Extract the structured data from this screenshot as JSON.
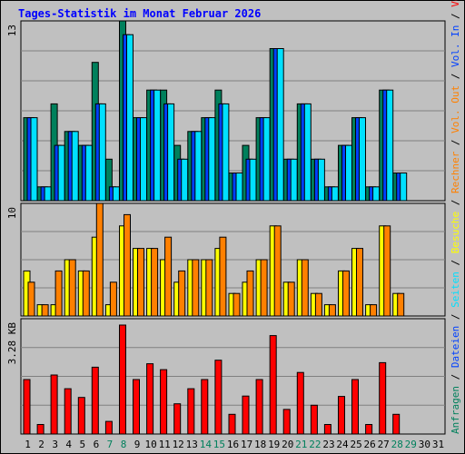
{
  "title": "Tages-Statistik im Monat Februar 2026",
  "colors": {
    "background": "#c0c0c0",
    "plot_bg": "#c0c0c0",
    "title": "#0000ff",
    "axis_label": "#000000",
    "gridline": "#808080",
    "anfragen": "#00805c",
    "dateien": "#0040ff",
    "seiten": "#00e0ff",
    "besuche": "#ffff00",
    "rechner": "#ff8000",
    "volumen": "#ff0000",
    "weekend_day": "#00805c",
    "weekday_day": "#000000"
  },
  "right_labels": {
    "top": [
      {
        "text": "Anfragen",
        "color": "#00805c"
      },
      {
        "text": " / ",
        "color": "#000000"
      },
      {
        "text": "Dateien",
        "color": "#0040ff"
      },
      {
        "text": " / ",
        "color": "#000000"
      },
      {
        "text": "Seiten",
        "color": "#00e0ff"
      },
      {
        "text": " / ",
        "color": "#000000"
      },
      {
        "text": "Besuche",
        "color": "#ffff00"
      },
      {
        "text": " / ",
        "color": "#000000"
      },
      {
        "text": "Rechner",
        "color": "#ff8000"
      },
      {
        "text": " / ",
        "color": "#000000"
      },
      {
        "text": "Vol. Out",
        "color": "#ff8000"
      },
      {
        "text": " / ",
        "color": "#000000"
      },
      {
        "text": "Vol. In",
        "color": "#0040ff"
      },
      {
        "text": " / ",
        "color": "#000000"
      },
      {
        "text": "Volumen",
        "color": "#ff0000"
      }
    ]
  },
  "chart_data": [
    {
      "type": "bar",
      "panel": "top",
      "ymax_label": "13",
      "ylim": [
        0,
        13
      ],
      "categories": [
        "1",
        "2",
        "3",
        "4",
        "5",
        "6",
        "7",
        "8",
        "9",
        "10",
        "11",
        "12",
        "13",
        "14",
        "15",
        "16",
        "17",
        "18",
        "19",
        "20",
        "21",
        "22",
        "23",
        "24",
        "25",
        "26",
        "27",
        "28",
        "29",
        "30",
        "31"
      ],
      "series": [
        {
          "name": "Anfragen",
          "color_key": "anfragen",
          "values": [
            6,
            1,
            7,
            5,
            4,
            10,
            3,
            13,
            6,
            8,
            8,
            4,
            5,
            6,
            8,
            2,
            4,
            6,
            11,
            3,
            7,
            3,
            1,
            4,
            6,
            1,
            8,
            2,
            0,
            0,
            0
          ]
        },
        {
          "name": "Dateien",
          "color_key": "dateien",
          "values": [
            6,
            1,
            4,
            5,
            4,
            7,
            1,
            12,
            6,
            8,
            7,
            3,
            5,
            6,
            7,
            2,
            3,
            6,
            11,
            3,
            7,
            3,
            1,
            4,
            6,
            1,
            8,
            2,
            0,
            0,
            0
          ]
        },
        {
          "name": "Seiten",
          "color_key": "seiten",
          "values": [
            6,
            1,
            4,
            5,
            4,
            7,
            1,
            12,
            6,
            8,
            7,
            3,
            5,
            6,
            7,
            2,
            3,
            6,
            11,
            3,
            7,
            3,
            1,
            4,
            6,
            1,
            8,
            2,
            0,
            0,
            0
          ]
        }
      ]
    },
    {
      "type": "bar",
      "panel": "middle",
      "ymax_label": "10",
      "ylim": [
        0,
        10
      ],
      "categories": [
        "1",
        "2",
        "3",
        "4",
        "5",
        "6",
        "7",
        "8",
        "9",
        "10",
        "11",
        "12",
        "13",
        "14",
        "15",
        "16",
        "17",
        "18",
        "19",
        "20",
        "21",
        "22",
        "23",
        "24",
        "25",
        "26",
        "27",
        "28",
        "29",
        "30",
        "31"
      ],
      "series": [
        {
          "name": "Besuche",
          "color_key": "besuche",
          "values": [
            4,
            1,
            1,
            5,
            4,
            7,
            1,
            8,
            6,
            6,
            5,
            3,
            5,
            5,
            6,
            2,
            3,
            5,
            8,
            3,
            5,
            2,
            1,
            4,
            6,
            1,
            8,
            2,
            0,
            0,
            0
          ]
        },
        {
          "name": "Rechner",
          "color_key": "rechner",
          "values": [
            3,
            1,
            4,
            5,
            4,
            10,
            3,
            9,
            6,
            6,
            7,
            4,
            5,
            5,
            7,
            2,
            4,
            5,
            8,
            3,
            5,
            2,
            1,
            4,
            6,
            1,
            8,
            2,
            0,
            0,
            0
          ]
        }
      ]
    },
    {
      "type": "bar",
      "panel": "bottom",
      "ymax_label": "3.28 KB",
      "ylim": [
        0,
        3.28
      ],
      "categories": [
        "1",
        "2",
        "3",
        "4",
        "5",
        "6",
        "7",
        "8",
        "9",
        "10",
        "11",
        "12",
        "13",
        "14",
        "15",
        "16",
        "17",
        "18",
        "19",
        "20",
        "21",
        "22",
        "23",
        "24",
        "25",
        "26",
        "27",
        "28",
        "29",
        "30",
        "31"
      ],
      "series": [
        {
          "name": "Volumen",
          "color_key": "volumen",
          "values": [
            1.55,
            0.27,
            1.68,
            1.29,
            1.04,
            1.9,
            0.36,
            3.1,
            1.55,
            2.0,
            1.83,
            0.86,
            1.29,
            1.55,
            2.1,
            0.56,
            1.08,
            1.55,
            2.8,
            0.7,
            1.75,
            0.82,
            0.27,
            1.07,
            1.55,
            0.27,
            2.03,
            0.56,
            0,
            0,
            0
          ]
        }
      ]
    }
  ],
  "x_day_colors": [
    "weekday_day",
    "weekday_day",
    "weekday_day",
    "weekday_day",
    "weekday_day",
    "weekday_day",
    "weekend_day",
    "weekend_day",
    "weekday_day",
    "weekday_day",
    "weekday_day",
    "weekday_day",
    "weekday_day",
    "weekend_day",
    "weekend_day",
    "weekday_day",
    "weekday_day",
    "weekday_day",
    "weekday_day",
    "weekday_day",
    "weekend_day",
    "weekend_day",
    "weekday_day",
    "weekday_day",
    "weekday_day",
    "weekday_day",
    "weekday_day",
    "weekend_day",
    "weekend_day",
    "weekday_day",
    "weekday_day"
  ]
}
